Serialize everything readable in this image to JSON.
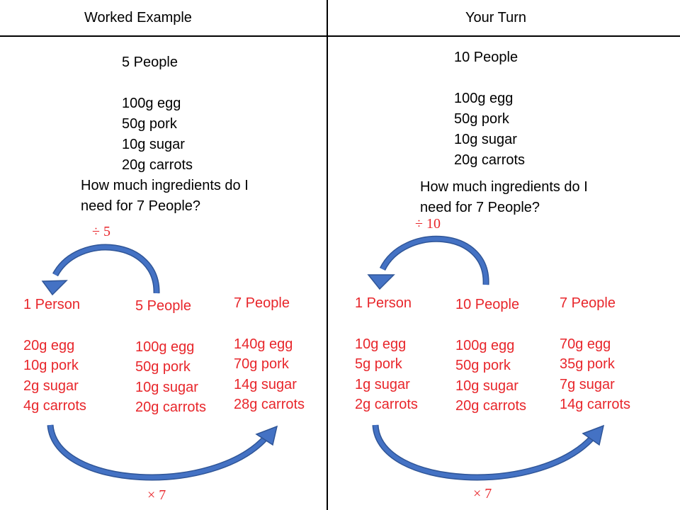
{
  "headers": {
    "left": "Worked Example",
    "right": "Your Turn"
  },
  "worked": {
    "people": "5 People",
    "ingredients": [
      "100g egg",
      "50g pork",
      "10g sugar",
      "20g carrots"
    ],
    "question": [
      "How much ingredients do I",
      "need for 7 People?"
    ],
    "divide_op": "÷ 5",
    "multiply_op": "× 7",
    "columns": [
      {
        "title": "1 Person",
        "items": [
          "20g egg",
          "10g pork",
          "2g sugar",
          "4g carrots"
        ]
      },
      {
        "title": "5 People",
        "items": [
          "100g egg",
          "50g pork",
          "10g sugar",
          "20g carrots"
        ]
      },
      {
        "title": "7 People",
        "items": [
          "140g egg",
          "70g pork",
          "14g sugar",
          "28g carrots"
        ]
      }
    ]
  },
  "turn": {
    "people": "10 People",
    "ingredients": [
      "100g egg",
      "50g pork",
      "10g sugar",
      "20g carrots"
    ],
    "question": [
      "How much ingredients do I",
      "need for 7 People?"
    ],
    "divide_op": "÷ 10",
    "multiply_op": "× 7",
    "columns": [
      {
        "title": "1 Person",
        "items": [
          "10g egg",
          "5g pork",
          "1g sugar",
          "2g carrots"
        ]
      },
      {
        "title": "10 People",
        "items": [
          "100g egg",
          "50g pork",
          "10g sugar",
          "20g carrots"
        ]
      },
      {
        "title": "7 People",
        "items": [
          "70g egg",
          "35g pork",
          "7g sugar",
          "14g carrots"
        ]
      }
    ]
  },
  "colors": {
    "answer_text": "#e8262b",
    "arrow": "#4472c4",
    "arrow_outline": "#2f5597"
  }
}
